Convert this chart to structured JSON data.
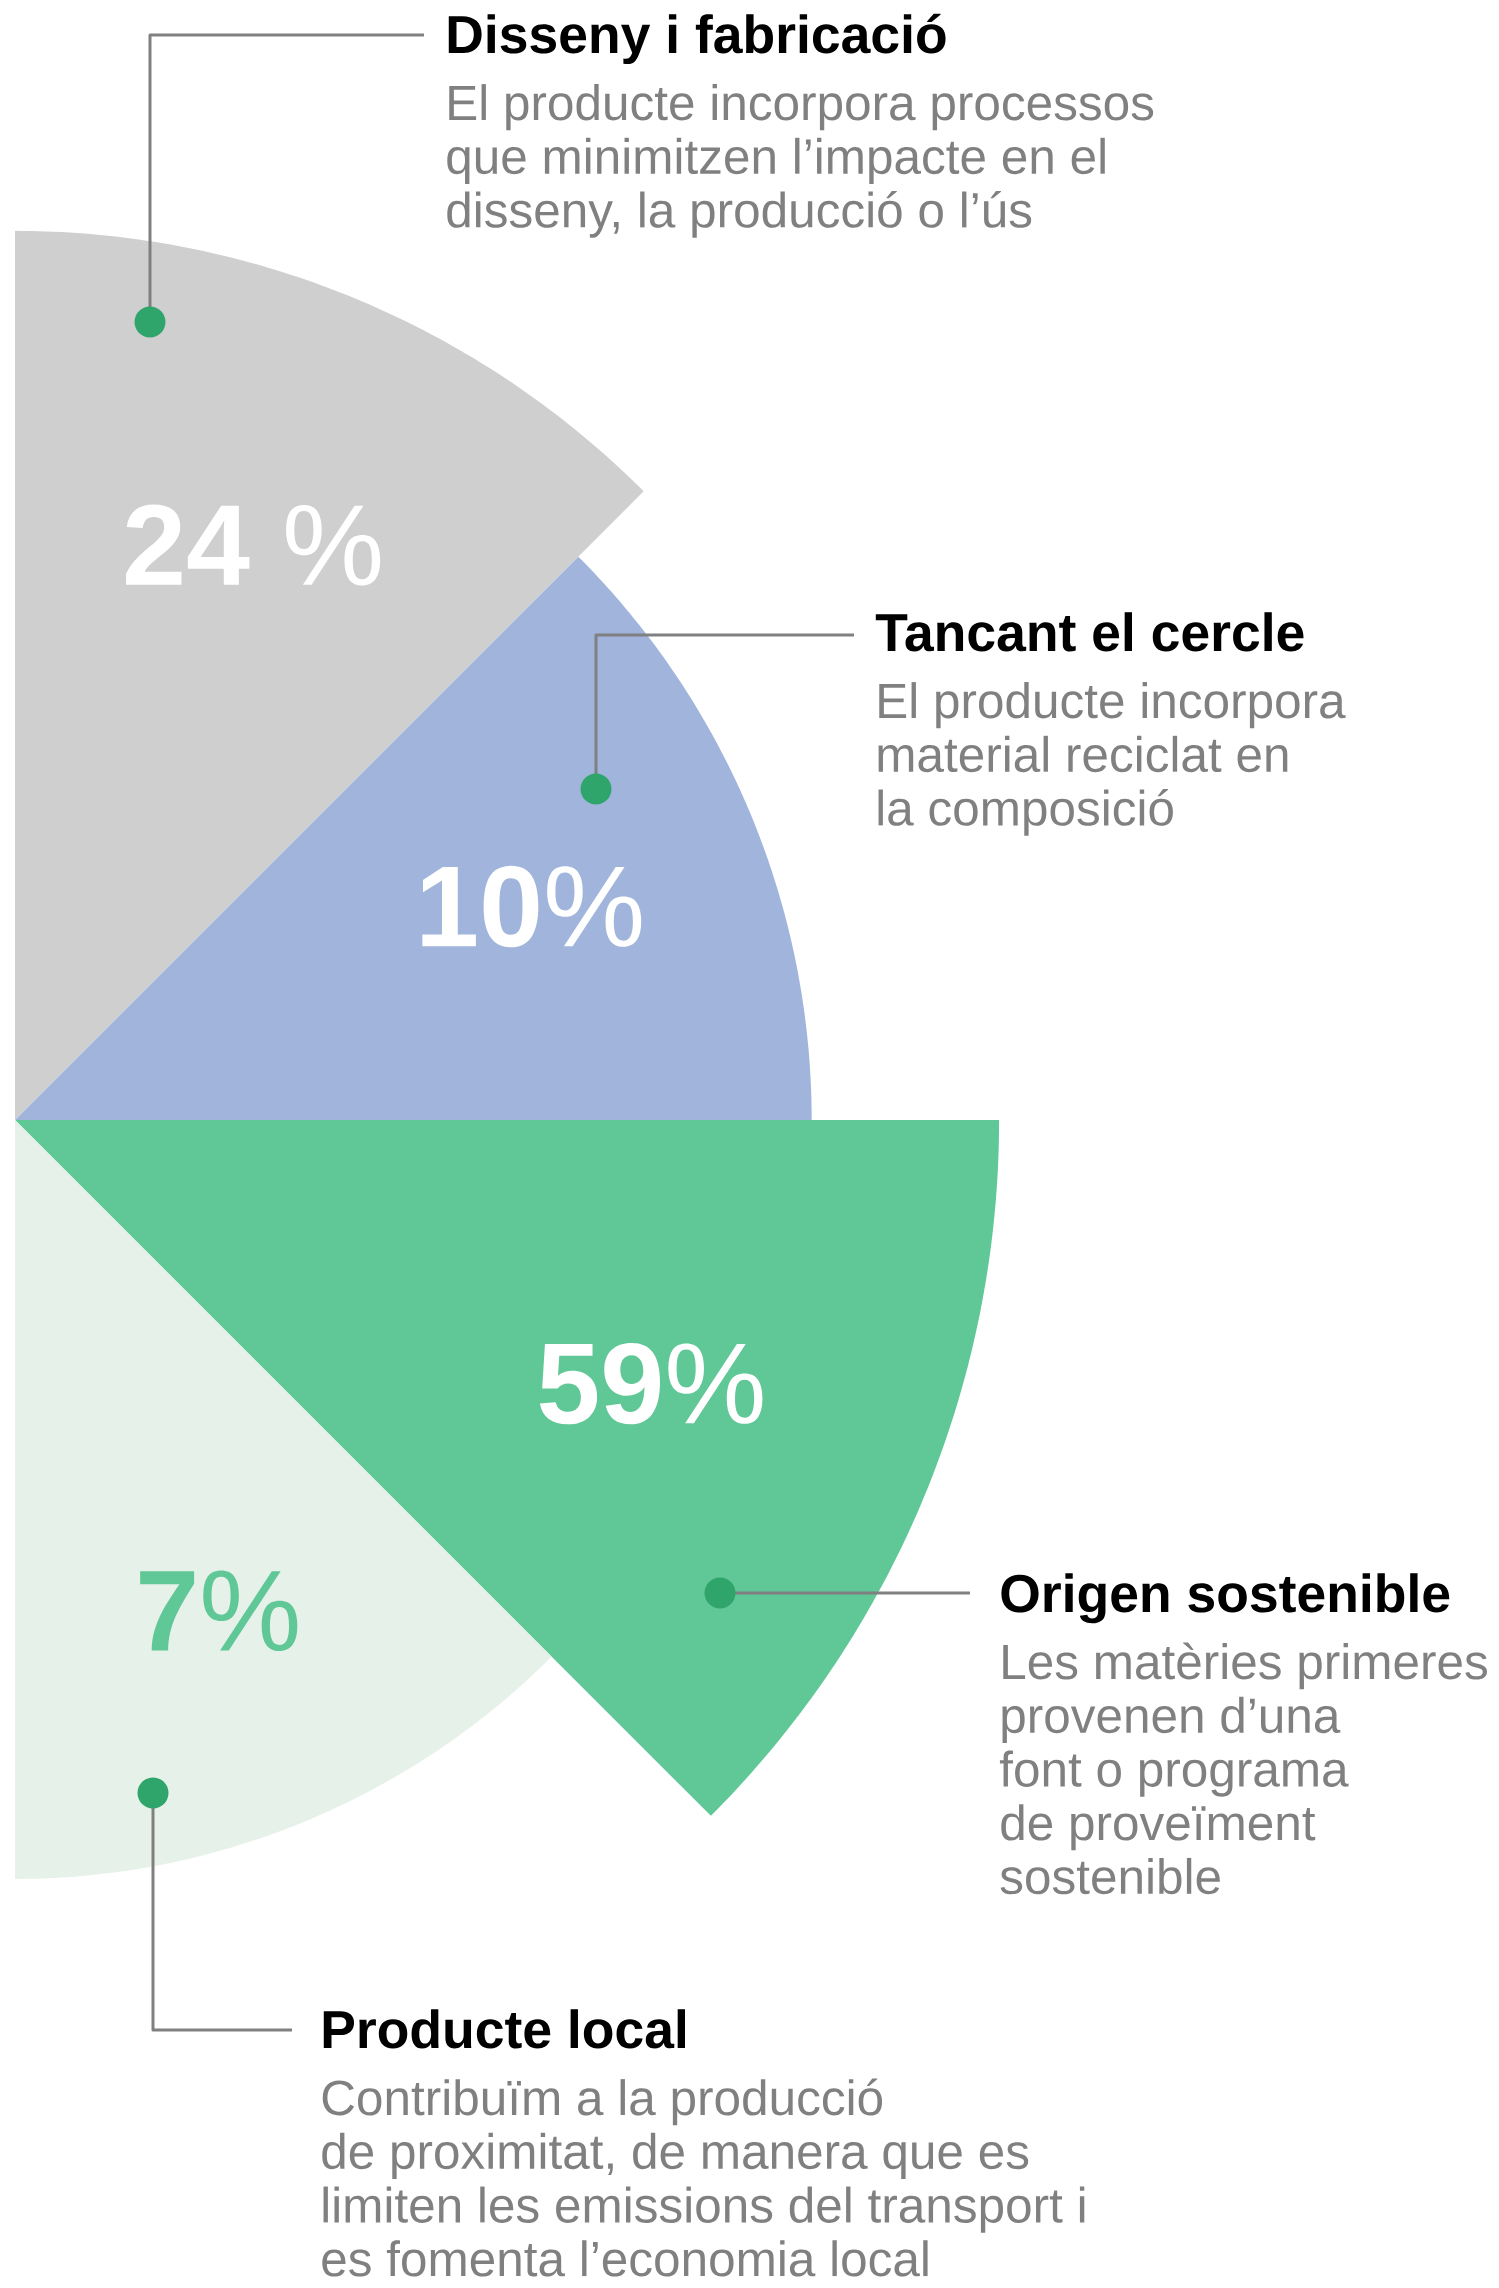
{
  "chart_data": {
    "type": "other",
    "categories": [
      "Disseny i fabricació",
      "Tancant el cercle",
      "Origen sostenible",
      "Producte local"
    ],
    "values": [
      24,
      10,
      59,
      7
    ],
    "colors": [
      "#cfcfcf",
      "#a1b5dc",
      "#60c797",
      "#e6f1e9"
    ],
    "value_labels": [
      "**24** %",
      "**10**%",
      "**59**%",
      "**7**%"
    ],
    "annotations": [
      "El producte incorpora processos",
      "que minimitzen l’impacte en el",
      "disseny, la producció o l’ús",
      "El producte incorpora",
      "material reciclat en",
      "la composició",
      "Les matèries primeres",
      "provenen d’una",
      "font o programa",
      "de proveïment",
      "sostenible",
      "Contribuïm a la producció",
      "de proximitat, de manera que es",
      "limiten les emissions del transport i",
      "es fomenta l’economia local"
    ]
  }
}
